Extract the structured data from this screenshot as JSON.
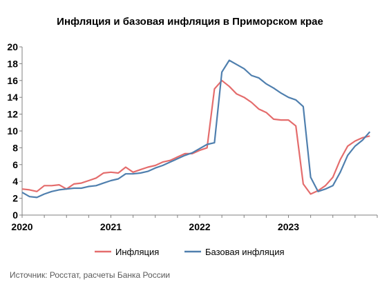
{
  "chart_data": {
    "type": "line",
    "title": "Инфляция и базовая инфляция в Приморском крае",
    "xlabel": "",
    "ylabel": "",
    "ylim": [
      0,
      20
    ],
    "yticks": [
      "0",
      "2",
      "4",
      "6",
      "8",
      "10",
      "12",
      "14",
      "16",
      "18",
      "20"
    ],
    "x_range": [
      "2020-01",
      "2023-12"
    ],
    "xticks": [
      "2020",
      "2021",
      "2022",
      "2023"
    ],
    "x": [
      "2020-01",
      "2020-02",
      "2020-03",
      "2020-04",
      "2020-05",
      "2020-06",
      "2020-07",
      "2020-08",
      "2020-09",
      "2020-10",
      "2020-11",
      "2020-12",
      "2021-01",
      "2021-02",
      "2021-03",
      "2021-04",
      "2021-05",
      "2021-06",
      "2021-07",
      "2021-08",
      "2021-09",
      "2021-10",
      "2021-11",
      "2021-12",
      "2022-01",
      "2022-02",
      "2022-03",
      "2022-04",
      "2022-05",
      "2022-06",
      "2022-07",
      "2022-08",
      "2022-09",
      "2022-10",
      "2022-11",
      "2022-12",
      "2023-01",
      "2023-02",
      "2023-03",
      "2023-04",
      "2023-05",
      "2023-06",
      "2023-07",
      "2023-08",
      "2023-09",
      "2023-10",
      "2023-11",
      "2023-12"
    ],
    "series": [
      {
        "name": "Инфляция",
        "color": "#e46c6c",
        "values": [
          3.1,
          3.0,
          2.8,
          3.5,
          3.5,
          3.6,
          3.1,
          3.7,
          3.8,
          4.1,
          4.4,
          5.0,
          5.1,
          5.0,
          5.7,
          5.1,
          5.4,
          5.7,
          5.9,
          6.3,
          6.5,
          6.9,
          7.3,
          7.3,
          7.7,
          8.0,
          15.0,
          16.0,
          15.3,
          14.4,
          14.0,
          13.4,
          12.6,
          12.2,
          11.4,
          11.3,
          11.3,
          10.6,
          3.7,
          2.5,
          2.9,
          3.5,
          4.5,
          6.6,
          8.2,
          8.8,
          9.2,
          9.4
        ]
      },
      {
        "name": "Базовая инфляция",
        "color": "#4f7fae",
        "values": [
          2.7,
          2.2,
          2.1,
          2.5,
          2.8,
          3.0,
          3.1,
          3.2,
          3.2,
          3.4,
          3.5,
          3.8,
          4.1,
          4.3,
          4.9,
          4.9,
          5.0,
          5.2,
          5.6,
          5.9,
          6.3,
          6.7,
          7.1,
          7.4,
          7.9,
          8.4,
          8.6,
          17.0,
          18.4,
          17.9,
          17.4,
          16.6,
          16.3,
          15.6,
          15.1,
          14.5,
          14.0,
          13.7,
          12.9,
          4.5,
          2.8,
          3.1,
          3.5,
          5.1,
          7.1,
          8.2,
          8.9,
          9.9
        ]
      }
    ],
    "legend_position": "bottom",
    "grid": false
  },
  "source": "Источник: Росстат, расчеты Банка России"
}
